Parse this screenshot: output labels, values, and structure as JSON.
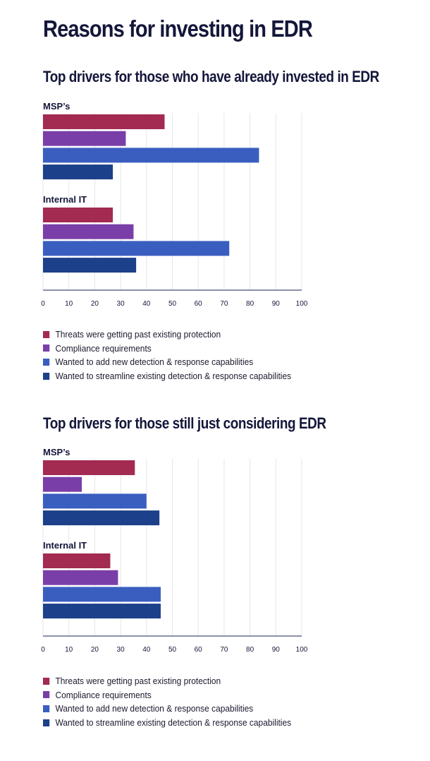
{
  "title": "Reasons for investing in EDR",
  "legend": [
    {
      "label": "Threats were getting past existing protection",
      "color": "#a32a50"
    },
    {
      "label": "Compliance requirements",
      "color": "#7a3ea8"
    },
    {
      "label": "Wanted to add new detection & response capabilities",
      "color": "#3a5ec0"
    },
    {
      "label": "Wanted to streamline existing detection & response capabilities",
      "color": "#1c4089"
    }
  ],
  "chart_data": [
    {
      "type": "bar",
      "orientation": "horizontal",
      "title": "Top drivers for those who have already invested in EDR",
      "xlim": [
        0,
        100
      ],
      "xticks": [
        "0",
        "10",
        "20",
        "30",
        "40",
        "50",
        "60",
        "70",
        "80",
        "90",
        "100"
      ],
      "grid": true,
      "legend_position": "bottom",
      "groups": [
        {
          "label": "MSP’s",
          "values": [
            47,
            32,
            83.5,
            27
          ]
        },
        {
          "label": "Internal IT",
          "values": [
            27,
            35,
            72,
            36
          ]
        }
      ],
      "series": [
        "Threats were getting past existing protection",
        "Compliance requirements",
        "Wanted to add new detection & response capabilities",
        "Wanted to streamline existing detection & response capabilities"
      ]
    },
    {
      "type": "bar",
      "orientation": "horizontal",
      "title": "Top drivers for those still just considering EDR",
      "xlim": [
        0,
        100
      ],
      "xticks": [
        "0",
        "10",
        "20",
        "30",
        "40",
        "50",
        "60",
        "70",
        "80",
        "90",
        "100"
      ],
      "grid": true,
      "legend_position": "bottom",
      "groups": [
        {
          "label": "MSP’s",
          "values": [
            35.5,
            15,
            40,
            45
          ]
        },
        {
          "label": "Internal IT",
          "values": [
            26,
            29,
            45.5,
            45.5
          ]
        }
      ],
      "series": [
        "Threats were getting past existing protection",
        "Compliance requirements",
        "Wanted to add new detection & response capabilities",
        "Wanted to streamline existing detection & response capabilities"
      ]
    }
  ]
}
